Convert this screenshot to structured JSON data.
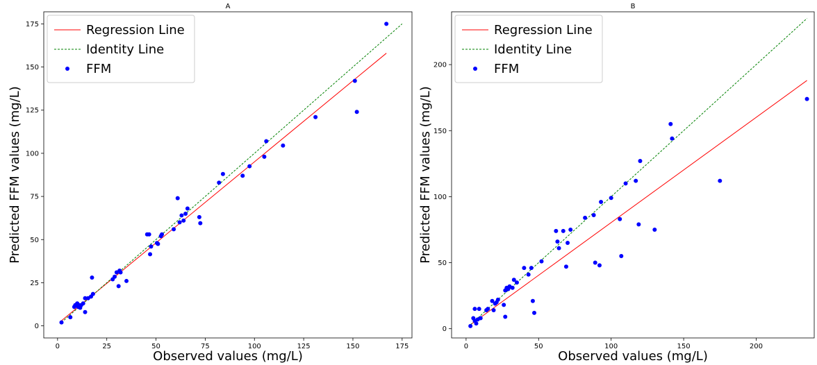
{
  "chart_data": [
    {
      "type": "scatter",
      "title": "A",
      "xlabel": "Observed values (mg/L)",
      "ylabel": "Predicted FFM values (mg/L)",
      "xlim": [
        -7,
        180
      ],
      "ylim": [
        -7,
        182
      ],
      "xticks": [
        0,
        25,
        50,
        75,
        100,
        125,
        150,
        175
      ],
      "yticks": [
        0,
        25,
        50,
        75,
        100,
        125,
        150,
        175
      ],
      "grid": false,
      "legend": {
        "position": "top-left",
        "entries": [
          "Regression Line",
          "Identity Line",
          "FFM"
        ]
      },
      "series": [
        {
          "name": "Regression Line",
          "kind": "line",
          "color": "#ff0000",
          "style": "solid",
          "x": [
            2,
            167
          ],
          "y": [
            3,
            158
          ]
        },
        {
          "name": "Identity Line",
          "kind": "line",
          "color": "#008000",
          "style": "dashed",
          "x": [
            2,
            175
          ],
          "y": [
            2,
            175
          ]
        },
        {
          "name": "FFM",
          "kind": "scatter",
          "color": "#0000ff",
          "points": [
            [
              2,
              2
            ],
            [
              6.5,
              5
            ],
            [
              8.5,
              11
            ],
            [
              9,
              12
            ],
            [
              10,
              13
            ],
            [
              10.5,
              11
            ],
            [
              11,
              12
            ],
            [
              11.5,
              10.5
            ],
            [
              12,
              12
            ],
            [
              13,
              13
            ],
            [
              14,
              16
            ],
            [
              14,
              8
            ],
            [
              15.5,
              16
            ],
            [
              17,
              17
            ],
            [
              17.5,
              28
            ],
            [
              18,
              18.5
            ],
            [
              28,
              27
            ],
            [
              29,
              28.5
            ],
            [
              30,
              31
            ],
            [
              31,
              23
            ],
            [
              31.5,
              32
            ],
            [
              32,
              31
            ],
            [
              35,
              26
            ],
            [
              45.5,
              53
            ],
            [
              46.5,
              53
            ],
            [
              47,
              41.5
            ],
            [
              47.5,
              46
            ],
            [
              50.5,
              48
            ],
            [
              51,
              47.5
            ],
            [
              52.5,
              52
            ],
            [
              53,
              53
            ],
            [
              59,
              56
            ],
            [
              61,
              74
            ],
            [
              62,
              60
            ],
            [
              63,
              64
            ],
            [
              64,
              61
            ],
            [
              65,
              65
            ],
            [
              66,
              68
            ],
            [
              72,
              63
            ],
            [
              72.5,
              59.5
            ],
            [
              82,
              83
            ],
            [
              84,
              88
            ],
            [
              94,
              87
            ],
            [
              97.5,
              92.5
            ],
            [
              105,
              98
            ],
            [
              106,
              107
            ],
            [
              114.5,
              104.5
            ],
            [
              131,
              121
            ],
            [
              151,
              142
            ],
            [
              152,
              124
            ],
            [
              167,
              175
            ]
          ]
        }
      ]
    },
    {
      "type": "scatter",
      "title": "B",
      "xlabel": "Observed values (mg/L)",
      "ylabel": "Predicted FFM values (mg/L)",
      "xlim": [
        -10,
        240
      ],
      "ylim": [
        -7,
        240
      ],
      "xticks": [
        0,
        50,
        100,
        150,
        200
      ],
      "yticks": [
        0,
        50,
        100,
        150,
        200
      ],
      "grid": false,
      "legend": {
        "position": "top-left",
        "entries": [
          "Regression Line",
          "Identity Line",
          "FFM"
        ]
      },
      "series": [
        {
          "name": "Regression Line",
          "kind": "line",
          "color": "#ff0000",
          "style": "solid",
          "x": [
            3,
            235
          ],
          "y": [
            3,
            188
          ]
        },
        {
          "name": "Identity Line",
          "kind": "line",
          "color": "#008000",
          "style": "dashed",
          "x": [
            3,
            235
          ],
          "y": [
            3,
            235
          ]
        },
        {
          "name": "FFM",
          "kind": "scatter",
          "color": "#0000ff",
          "points": [
            [
              3,
              2
            ],
            [
              5,
              8
            ],
            [
              6,
              15
            ],
            [
              6,
              6
            ],
            [
              7,
              4
            ],
            [
              8,
              7
            ],
            [
              9,
              15
            ],
            [
              10,
              8
            ],
            [
              14,
              14
            ],
            [
              15,
              15
            ],
            [
              18,
              21
            ],
            [
              19,
              14
            ],
            [
              20,
              19
            ],
            [
              21,
              20
            ],
            [
              22,
              22
            ],
            [
              26,
              18
            ],
            [
              27,
              9
            ],
            [
              27,
              29
            ],
            [
              28,
              31
            ],
            [
              29,
              30
            ],
            [
              30,
              32
            ],
            [
              32,
              31
            ],
            [
              33,
              37
            ],
            [
              35,
              35
            ],
            [
              40,
              46
            ],
            [
              43,
              41
            ],
            [
              45,
              46
            ],
            [
              46,
              21
            ],
            [
              47,
              12
            ],
            [
              52,
              51
            ],
            [
              62,
              74
            ],
            [
              63,
              66
            ],
            [
              64,
              61
            ],
            [
              67,
              74
            ],
            [
              69,
              47
            ],
            [
              70,
              65
            ],
            [
              72,
              75
            ],
            [
              82,
              84
            ],
            [
              88,
              86
            ],
            [
              89,
              50
            ],
            [
              92,
              48
            ],
            [
              93,
              96
            ],
            [
              100,
              99
            ],
            [
              106,
              83
            ],
            [
              107,
              55
            ],
            [
              110,
              110
            ],
            [
              117,
              112
            ],
            [
              119,
              79
            ],
            [
              120,
              127
            ],
            [
              130,
              75
            ],
            [
              141,
              155
            ],
            [
              142,
              144
            ],
            [
              175,
              112
            ],
            [
              235,
              174
            ]
          ]
        }
      ]
    }
  ]
}
